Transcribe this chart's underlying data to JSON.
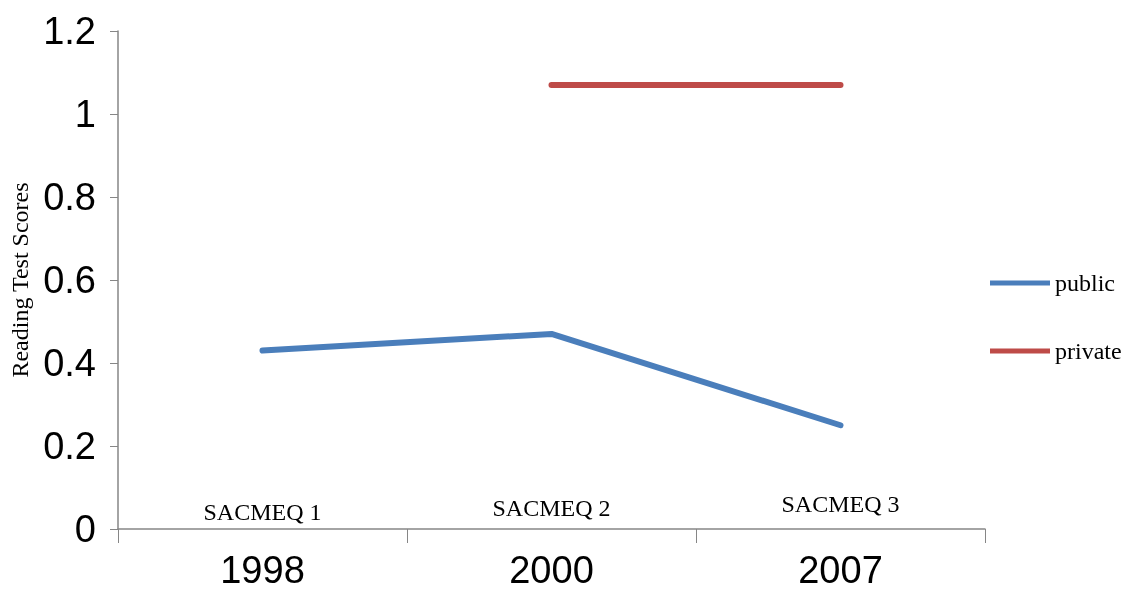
{
  "chart_data": {
    "type": "line",
    "ylabel": "Reading Test Scores",
    "categories": [
      "1998",
      "2000",
      "2007"
    ],
    "series": [
      {
        "name": "public",
        "color": "#4a7ebb",
        "values": [
          0.43,
          0.47,
          0.25
        ]
      },
      {
        "name": "private",
        "color": "#be4b48",
        "values": [
          null,
          1.07,
          1.07
        ]
      }
    ],
    "ylim": [
      0,
      1.2
    ],
    "yticks": [
      0,
      0.2,
      0.4,
      0.6,
      0.8,
      1,
      1.2
    ],
    "grid": false,
    "legend": "right",
    "marker": "none",
    "line_style": "solid",
    "annotations": [
      "SACMEQ 1",
      "SACMEQ 2",
      "SACMEQ 3"
    ]
  }
}
